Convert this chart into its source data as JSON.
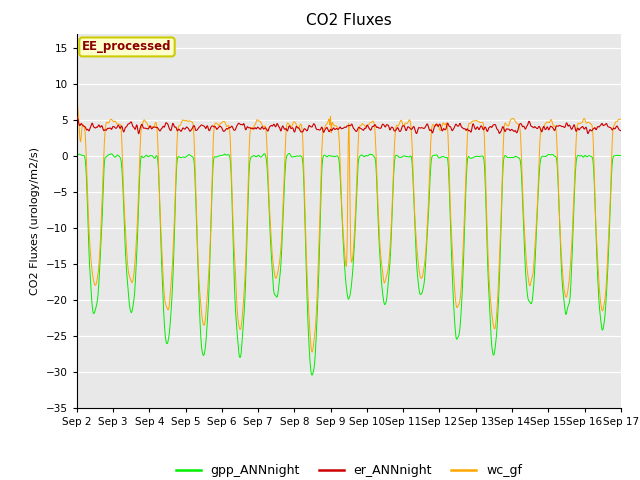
{
  "title": "CO2 Fluxes",
  "ylabel": "CO2 Fluxes (urology/m2/s)",
  "ylim": [
    -35,
    17
  ],
  "yticks": [
    -35,
    -30,
    -25,
    -20,
    -15,
    -10,
    -5,
    0,
    5,
    10,
    15
  ],
  "annotation_text": "EE_processed",
  "annotation_color": "#8B0000",
  "annotation_bg": "#FFFFCC",
  "annotation_border": "#CCCC00",
  "gpp_color": "#00EE00",
  "er_color": "#CC0000",
  "wc_color": "#FFA500",
  "legend_labels": [
    "gpp_ANNnight",
    "er_ANNnight",
    "wc_gf"
  ],
  "n_points": 1440,
  "background_color": "#E8E8E8",
  "title_fontsize": 11,
  "label_fontsize": 8,
  "tick_fontsize": 7.5
}
